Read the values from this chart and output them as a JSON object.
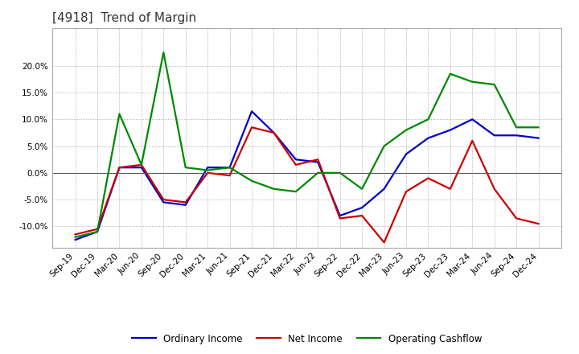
{
  "title": "[4918]  Trend of Margin",
  "x_labels": [
    "Sep-19",
    "Dec-19",
    "Mar-20",
    "Jun-20",
    "Sep-20",
    "Dec-20",
    "Mar-21",
    "Jun-21",
    "Sep-21",
    "Dec-21",
    "Mar-22",
    "Jun-22",
    "Sep-22",
    "Dec-22",
    "Mar-23",
    "Jun-23",
    "Sep-23",
    "Dec-23",
    "Mar-24",
    "Jun-24",
    "Sep-24",
    "Dec-24"
  ],
  "ordinary_income": [
    -12.5,
    -11.0,
    1.0,
    1.0,
    -5.5,
    -6.0,
    1.0,
    1.0,
    11.5,
    7.5,
    2.5,
    2.0,
    -8.0,
    -6.5,
    -3.0,
    3.5,
    6.5,
    8.0,
    10.0,
    7.0,
    7.0,
    6.5
  ],
  "net_income": [
    -11.5,
    -10.5,
    1.0,
    1.5,
    -5.0,
    -5.5,
    0.0,
    -0.5,
    8.5,
    7.5,
    1.5,
    2.5,
    -8.5,
    -8.0,
    -13.0,
    -3.5,
    -1.0,
    -3.0,
    6.0,
    -3.0,
    -8.5,
    -9.5
  ],
  "operating_cashflow": [
    -12.0,
    -11.0,
    11.0,
    1.5,
    22.5,
    1.0,
    0.5,
    1.0,
    -1.5,
    -3.0,
    -3.5,
    0.0,
    0.0,
    -3.0,
    5.0,
    8.0,
    10.0,
    18.5,
    17.0,
    16.5,
    8.5,
    8.5
  ],
  "ylim": [
    -14,
    27
  ],
  "yticks": [
    -10,
    -5,
    0,
    5,
    10,
    15,
    20
  ],
  "line_colors": {
    "ordinary_income": "#0000cc",
    "net_income": "#cc0000",
    "operating_cashflow": "#008800"
  },
  "background_color": "#ffffff",
  "plot_bg_color": "#ffffff",
  "grid_color": "#999999",
  "legend_labels": [
    "Ordinary Income",
    "Net Income",
    "Operating Cashflow"
  ],
  "title_fontsize": 11,
  "tick_fontsize": 7.5,
  "legend_fontsize": 8.5
}
